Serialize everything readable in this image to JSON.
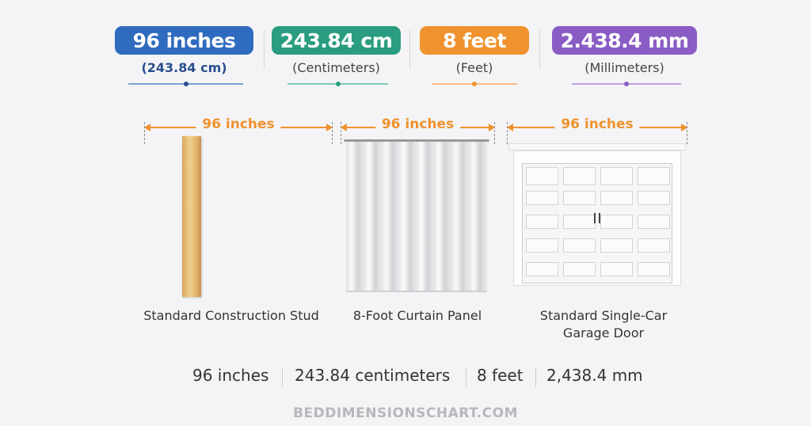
{
  "colors": {
    "inches": "#2f6bbf",
    "cm": "#2a9d80",
    "feet": "#f0922e",
    "mm": "#8a5cc4"
  },
  "units": [
    {
      "badge": "96 inches",
      "sub": "(243.84 cm)"
    },
    {
      "badge": "243.84 cm",
      "sub": "(Centimeters)"
    },
    {
      "badge": "8 feet",
      "sub": "(Feet)"
    },
    {
      "badge": "2.438.4 mm",
      "sub": "(Millimeters)"
    }
  ],
  "examples": [
    {
      "dimension": "96 inches",
      "caption": "Standard Construction Stud"
    },
    {
      "dimension": "96 inches",
      "caption": "8-Foot Curtain Panel"
    },
    {
      "dimension": "96 inches",
      "caption": "Standard Single-Car Garage Door"
    }
  ],
  "summary": [
    "96 inches",
    "243.84 centimeters",
    "8 feet",
    "2,438.4 mm"
  ],
  "footer": "BEDDIMENSIONSCHART.COM"
}
